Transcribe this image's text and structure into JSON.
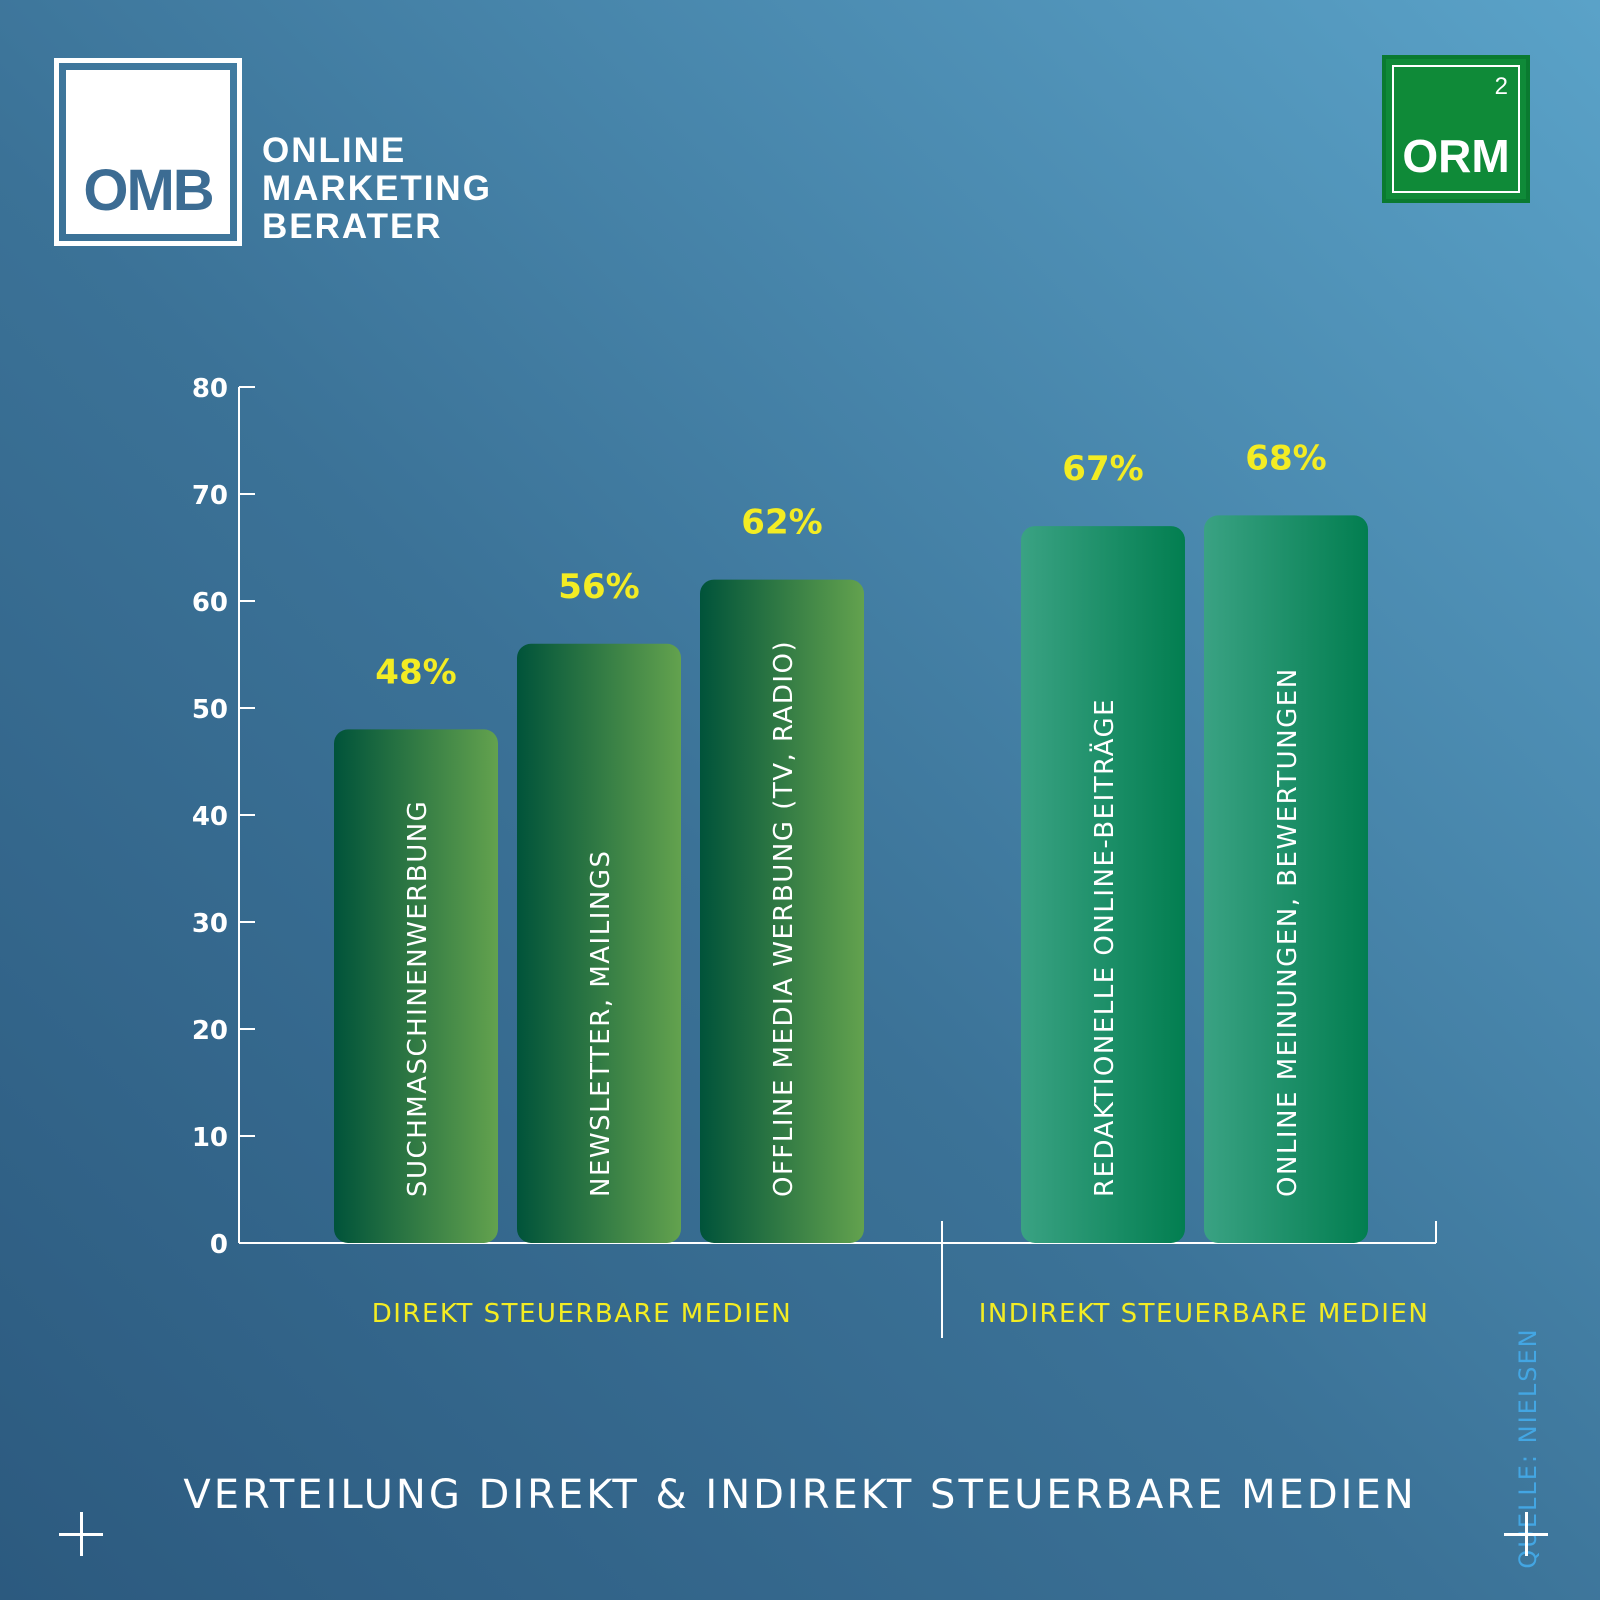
{
  "branding": {
    "omb_mark": "OMB",
    "omb_lines": [
      "ONLINE",
      "MARKETING",
      "BERATER"
    ],
    "orm_mark": "ORM",
    "orm_superscript": "2"
  },
  "source": "QUELLE: NIELSEN",
  "colors": {
    "direct_bar_start": "#00533a",
    "direct_bar_end": "#63a24e",
    "indirect_bar_start": "#3aa283",
    "indirect_bar_end": "#027e50",
    "value_label": "#f3ec23",
    "group_label": "#f3ec23",
    "axis": "#ffffff"
  },
  "chart_data": {
    "type": "bar",
    "title": "VERTEILUNG DIREKT & INDIREKT STEUERBARE MEDIEN",
    "ylim": [
      0,
      80
    ],
    "yticks": [
      0,
      10,
      20,
      30,
      40,
      50,
      60,
      70,
      80
    ],
    "grid": false,
    "groups": [
      {
        "label": "DIREKT STEUERBARE MEDIEN",
        "style": "direct",
        "bars": [
          {
            "category": "SUCHMASCHINENWERBUNG",
            "value": 48,
            "value_label": "48%"
          },
          {
            "category": "NEWSLETTER, MAILINGS",
            "value": 56,
            "value_label": "56%"
          },
          {
            "category": "OFFLINE MEDIA WERBUNG (TV, RADIO)",
            "value": 62,
            "value_label": "62%"
          }
        ]
      },
      {
        "label": "INDIREKT STEUERBARE MEDIEN",
        "style": "indirect",
        "bars": [
          {
            "category": "REDAKTIONELLE ONLINE-BEITRÄGE",
            "value": 67,
            "value_label": "67%"
          },
          {
            "category": "ONLINE MEINUNGEN, BEWERTUNGEN",
            "value": 68,
            "value_label": "68%"
          }
        ]
      }
    ]
  }
}
